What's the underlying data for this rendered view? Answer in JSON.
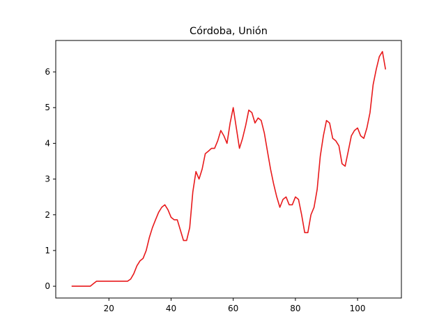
{
  "chart_data": {
    "type": "line",
    "title": "Córdoba, Unión",
    "xlabel": "",
    "ylabel": "",
    "xlim": [
      2.9,
      114.1
    ],
    "ylim": [
      -0.33,
      6.88
    ],
    "xticks": [
      20,
      40,
      60,
      80,
      100
    ],
    "yticks": [
      0,
      1,
      2,
      3,
      4,
      5,
      6
    ],
    "grid": false,
    "series_color": "#e8191b",
    "series": [
      {
        "x": [
          8,
          9,
          10,
          11,
          12,
          13,
          14,
          15,
          16,
          17,
          18,
          19,
          20,
          21,
          22,
          23,
          24,
          25,
          26,
          27,
          28,
          29,
          30,
          31,
          32,
          33,
          34,
          35,
          36,
          37,
          38,
          39,
          40,
          41,
          42,
          43,
          44,
          45,
          46,
          47,
          48,
          49,
          50,
          51,
          52,
          53,
          54,
          55,
          56,
          57,
          58,
          59,
          60,
          61,
          62,
          63,
          64,
          65,
          66,
          67,
          68,
          69,
          70,
          71,
          72,
          73,
          74,
          75,
          76,
          77,
          78,
          79,
          80,
          81,
          82,
          83,
          84,
          85,
          86,
          87,
          88,
          89,
          90,
          91,
          92,
          93,
          94,
          95,
          96,
          97,
          98,
          99,
          100,
          101,
          102,
          103,
          104,
          105,
          106,
          107,
          108,
          109
        ],
        "y": [
          0,
          0,
          0,
          0,
          0,
          0,
          0,
          0.07,
          0.14,
          0.14,
          0.14,
          0.14,
          0.14,
          0.14,
          0.14,
          0.14,
          0.14,
          0.14,
          0.14,
          0.2,
          0.35,
          0.57,
          0.71,
          0.78,
          1.0,
          1.36,
          1.64,
          1.86,
          2.07,
          2.21,
          2.28,
          2.14,
          1.93,
          1.86,
          1.86,
          1.57,
          1.28,
          1.28,
          1.64,
          2.64,
          3.21,
          3.0,
          3.28,
          3.71,
          3.78,
          3.86,
          3.86,
          4.07,
          4.36,
          4.21,
          4.0,
          4.57,
          5.0,
          4.43,
          3.86,
          4.14,
          4.5,
          4.93,
          4.86,
          4.57,
          4.71,
          4.64,
          4.29,
          3.78,
          3.28,
          2.86,
          2.5,
          2.21,
          2.43,
          2.5,
          2.28,
          2.28,
          2.5,
          2.43,
          2.0,
          1.5,
          1.5,
          2.0,
          2.21,
          2.71,
          3.64,
          4.21,
          4.64,
          4.57,
          4.14,
          4.07,
          3.93,
          3.43,
          3.36,
          3.78,
          4.21,
          4.36,
          4.43,
          4.21,
          4.14,
          4.43,
          4.86,
          5.64,
          6.07,
          6.43,
          6.57,
          6.07
        ]
      }
    ]
  }
}
